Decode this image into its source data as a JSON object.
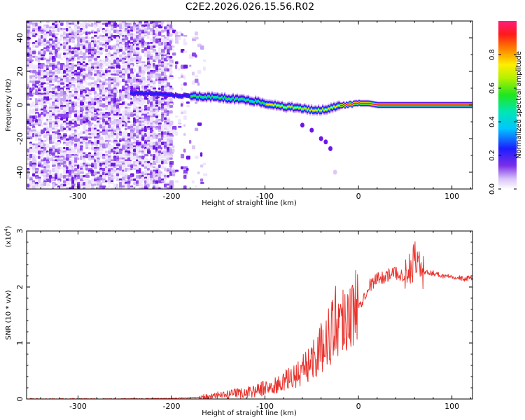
{
  "figure_title": "C2E2.2026.026.15.56.R02",
  "chart_data": [
    {
      "type": "heatmap",
      "title": "C2E2.2026.026.15.56.R02",
      "xlabel": "Height of straight line (km)",
      "ylabel": "Frequency (Hz)",
      "xlim": [
        -355,
        122
      ],
      "ylim": [
        -50,
        50
      ],
      "x_ticks": [
        -300,
        -200,
        -100,
        0,
        100
      ],
      "x_tick_labels": [
        "-300",
        "-200",
        "-100",
        "0",
        "100"
      ],
      "y_ticks": [
        -40,
        -20,
        0,
        20,
        40
      ],
      "y_tick_labels": [
        "-40",
        "-20",
        "0",
        "20",
        "40"
      ],
      "colorbar": {
        "label": "Normalized spectral amplitude",
        "range": [
          0,
          1
        ],
        "ticks": [
          0.0,
          0.2,
          0.4,
          0.6,
          0.8
        ],
        "tick_labels": [
          "0.0",
          "0.2",
          "0.4",
          "0.6",
          "0.8"
        ]
      },
      "ridge_frequency_vs_height": {
        "x": [
          -240,
          -220,
          -200,
          -180,
          -160,
          -140,
          -120,
          -100,
          -80,
          -60,
          -50,
          -40,
          -30,
          -20,
          -10,
          0,
          10,
          20,
          40,
          60,
          80,
          100,
          122
        ],
        "y": [
          7,
          7,
          6,
          5,
          5,
          4,
          3,
          1,
          -1,
          -2,
          -3,
          -3,
          -2,
          0,
          0,
          1,
          1,
          0,
          0,
          0,
          0,
          0,
          0
        ]
      },
      "branch": {
        "x": [
          -60,
          -50,
          -40,
          -35,
          -30,
          -25
        ],
        "y": [
          -12,
          -15,
          -20,
          -22,
          -26,
          -40
        ]
      }
    },
    {
      "type": "line",
      "xlabel": "Height of straight line (km)",
      "ylabel": "SNR (10 * v/v)",
      "y_scale_note": "(x10^4)",
      "y_scale_base": "(x10",
      "y_scale_exp": "4",
      "y_scale_close": ")",
      "xlim": [
        -355,
        122
      ],
      "ylim": [
        0,
        3
      ],
      "x_ticks": [
        -300,
        -200,
        -100,
        0,
        100
      ],
      "x_tick_labels": [
        "-300",
        "-200",
        "-100",
        "0",
        "100"
      ],
      "y_ticks": [
        0,
        1,
        2,
        3
      ],
      "y_tick_labels": [
        "0",
        "1",
        "2",
        "3"
      ],
      "color": "#e8322c",
      "series": [
        {
          "name": "SNR",
          "x": [
            -355,
            -300,
            -250,
            -200,
            -180,
            -160,
            -140,
            -120,
            -110,
            -100,
            -90,
            -80,
            -70,
            -60,
            -50,
            -40,
            -30,
            -25,
            -20,
            -15,
            -10,
            -5,
            0,
            5,
            10,
            20,
            30,
            40,
            50,
            55,
            60,
            65,
            70,
            80,
            90,
            100,
            110,
            122
          ],
          "y": [
            0.0,
            0.0,
            0.0,
            0.01,
            0.02,
            0.04,
            0.07,
            0.12,
            0.15,
            0.2,
            0.22,
            0.3,
            0.4,
            0.5,
            0.7,
            0.9,
            1.2,
            1.4,
            1.4,
            1.5,
            1.55,
            1.5,
            1.7,
            1.8,
            2.0,
            2.15,
            2.2,
            2.25,
            2.2,
            2.25,
            2.55,
            2.4,
            2.25,
            2.25,
            2.2,
            2.2,
            2.15,
            2.15
          ]
        }
      ]
    }
  ]
}
